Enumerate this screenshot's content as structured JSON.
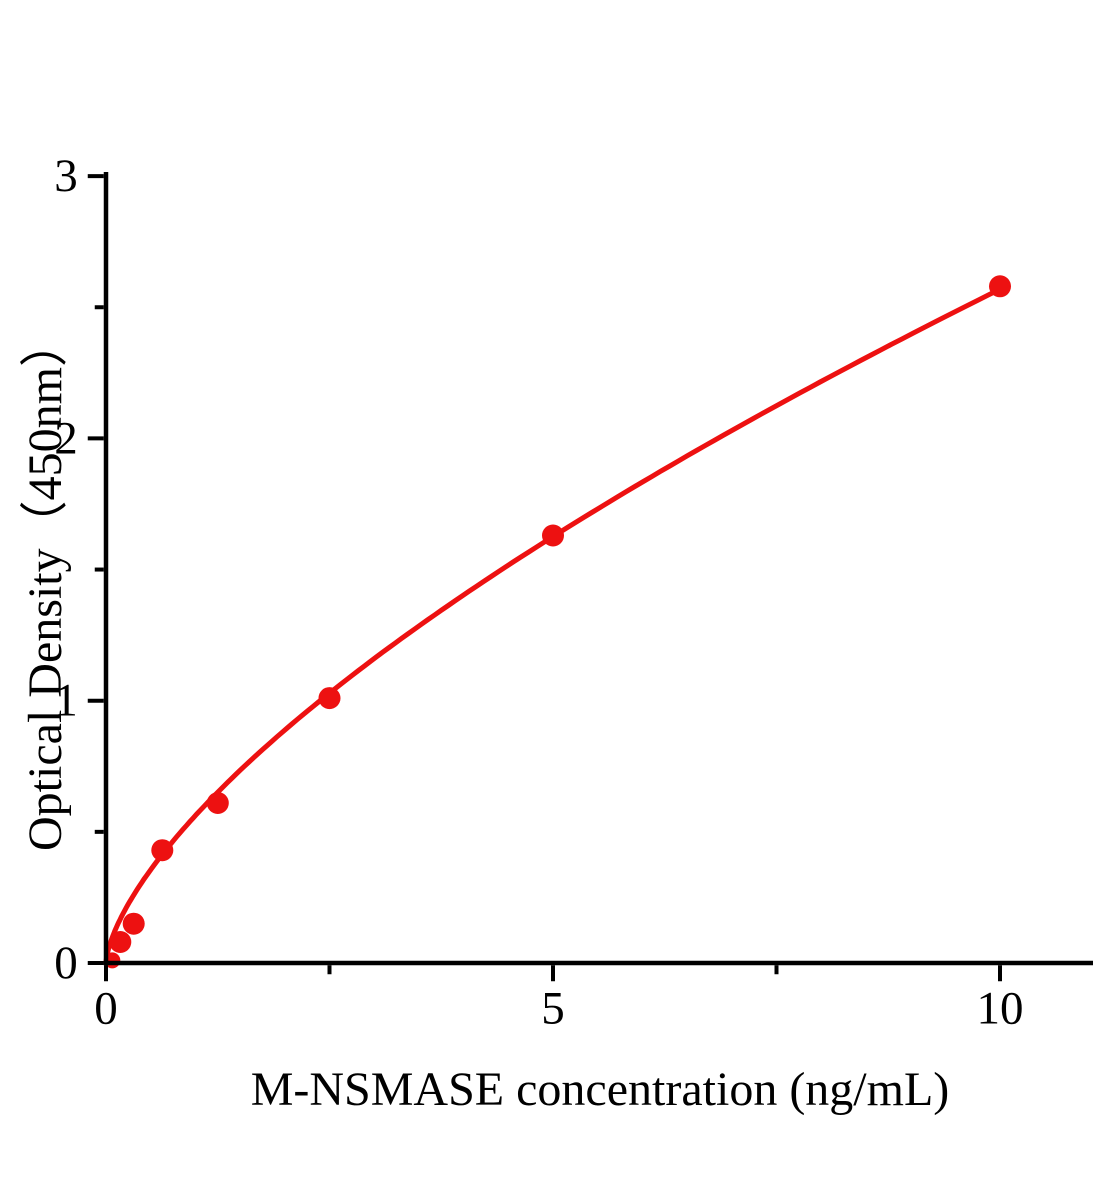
{
  "chart_data": {
    "type": "scatter",
    "title": "",
    "xlabel": "M-NSMASE concentration (ng/mL)",
    "ylabel": "Optical Density（450nm）",
    "xlim": [
      0,
      11
    ],
    "ylim": [
      0,
      3
    ],
    "x_major_ticks": [
      0,
      5,
      10
    ],
    "x_minor_ticks": [
      2.5,
      7.5
    ],
    "y_major_ticks": [
      0,
      1,
      2,
      3
    ],
    "y_minor_ticks": [
      0.5,
      1.5,
      2.5
    ],
    "grid": false,
    "legend": null,
    "axis_color": "#000000",
    "series": [
      {
        "marker": "circle",
        "color": "#ed1111",
        "points": [
          {
            "x": 0.07,
            "y": 0.01
          },
          {
            "x": 0.16,
            "y": 0.08
          },
          {
            "x": 0.31,
            "y": 0.15
          },
          {
            "x": 0.63,
            "y": 0.43
          },
          {
            "x": 1.25,
            "y": 0.61
          },
          {
            "x": 2.5,
            "y": 1.01
          },
          {
            "x": 5,
            "y": 1.63
          },
          {
            "x": 10,
            "y": 2.58
          }
        ],
        "fit_curve": {
          "type": "power",
          "equation": "y = 0.562 * x^0.66",
          "a": 0.562,
          "b": 0.66,
          "x_range": [
            0,
            10
          ]
        }
      }
    ]
  }
}
